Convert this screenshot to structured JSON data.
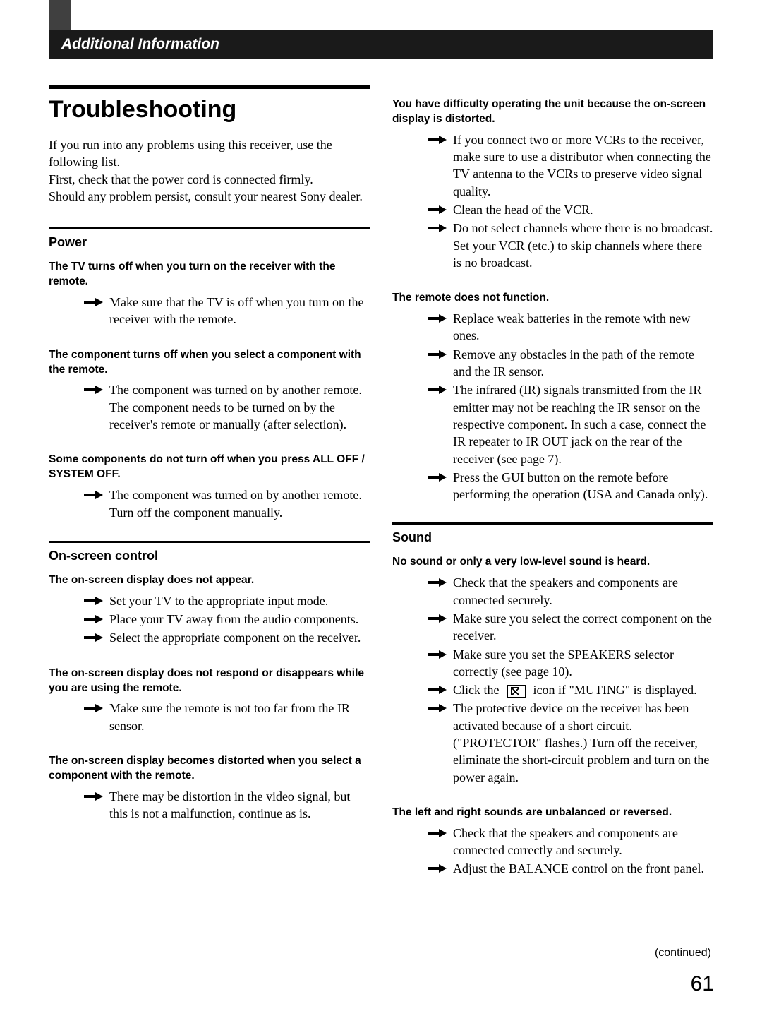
{
  "header": {
    "title": "Additional Information"
  },
  "page": {
    "title": "Troubleshooting",
    "intro": "If you run into any problems using this receiver, use the following list.\nFirst, check that the power cord is connected firmly.\nShould any problem persist, consult your nearest Sony dealer.",
    "continued": "(continued)",
    "number": "61"
  },
  "sections": {
    "power": {
      "heading": "Power",
      "items": [
        {
          "problem": "The TV turns off when you turn on the receiver with the remote.",
          "solutions": [
            "Make sure that the TV is off when you turn on the receiver with the remote."
          ]
        },
        {
          "problem": "The component turns off when you select a component with the remote.",
          "solutions": [
            "The component was turned on by another remote.  The component needs to be turned on by the receiver's remote or manually (after selection)."
          ]
        },
        {
          "problem": "Some components do not turn off when you press ALL OFF / SYSTEM OFF.",
          "solutions": [
            "The component was turned on by another remote.  Turn off the component manually."
          ]
        }
      ]
    },
    "onscreen": {
      "heading": "On-screen control",
      "items": [
        {
          "problem": "The on-screen display does not appear.",
          "solutions": [
            "Set your TV to the appropriate input mode.",
            "Place your TV away from the audio components.",
            "Select the appropriate component on the receiver."
          ]
        },
        {
          "problem": "The on-screen display does not respond or disappears while you are using the remote.",
          "solutions": [
            "Make sure the remote is not too far from the IR sensor."
          ]
        },
        {
          "problem": "The on-screen display becomes distorted when you select a component with the remote.",
          "solutions": [
            "There may be distortion in the video signal, but this is not a malfunction, continue as is."
          ]
        },
        {
          "problem": "You have difficulty operating the unit because the on-screen display is distorted.",
          "solutions": [
            "If you connect two or more VCRs to the receiver, make sure to use a distributor when connecting the TV antenna to the VCRs to preserve video signal quality.",
            "Clean the head of the VCR.",
            "Do not select channels where there is no broadcast.  Set your VCR (etc.) to skip channels where there is no broadcast."
          ]
        },
        {
          "problem": "The remote does not function.",
          "solutions": [
            "Replace weak batteries in the remote with new ones.",
            "Remove any obstacles in the path of the remote and the IR sensor.",
            "The infrared (IR) signals transmitted from the IR emitter may not be reaching the IR sensor on the respective component.  In such a case, connect the IR repeater to IR OUT jack on the rear of the receiver (see page 7).",
            "Press the GUI button on the remote before performing the operation (USA and Canada only)."
          ]
        }
      ]
    },
    "sound": {
      "heading": "Sound",
      "items": [
        {
          "problem": "No sound or only a very low-level sound is heard.",
          "solutions": [
            "Check that the speakers and components are connected securely.",
            "Make sure you select the correct component on the receiver.",
            "Make sure you set the SPEAKERS selector correctly (see page 10).",
            "Click the [ICON] icon if \"MUTING\" is displayed.",
            "The protective device on the receiver has been activated because of a short circuit. (\"PROTECTOR\" flashes.)  Turn off the receiver, eliminate the short-circuit problem and turn on the power again."
          ]
        },
        {
          "problem": "The left and right sounds are unbalanced or reversed.",
          "solutions": [
            "Check that the speakers and components are connected correctly and securely.",
            "Adjust the BALANCE control on the front panel."
          ]
        }
      ]
    }
  },
  "style": {
    "arrow_color": "#000000",
    "page_bg": "#ffffff",
    "header_bg": "#1a1a1a",
    "header_fg": "#ffffff",
    "strip_bg": "#404040",
    "body_font_size_pt": 13,
    "heading_font_size_pt": 26
  }
}
